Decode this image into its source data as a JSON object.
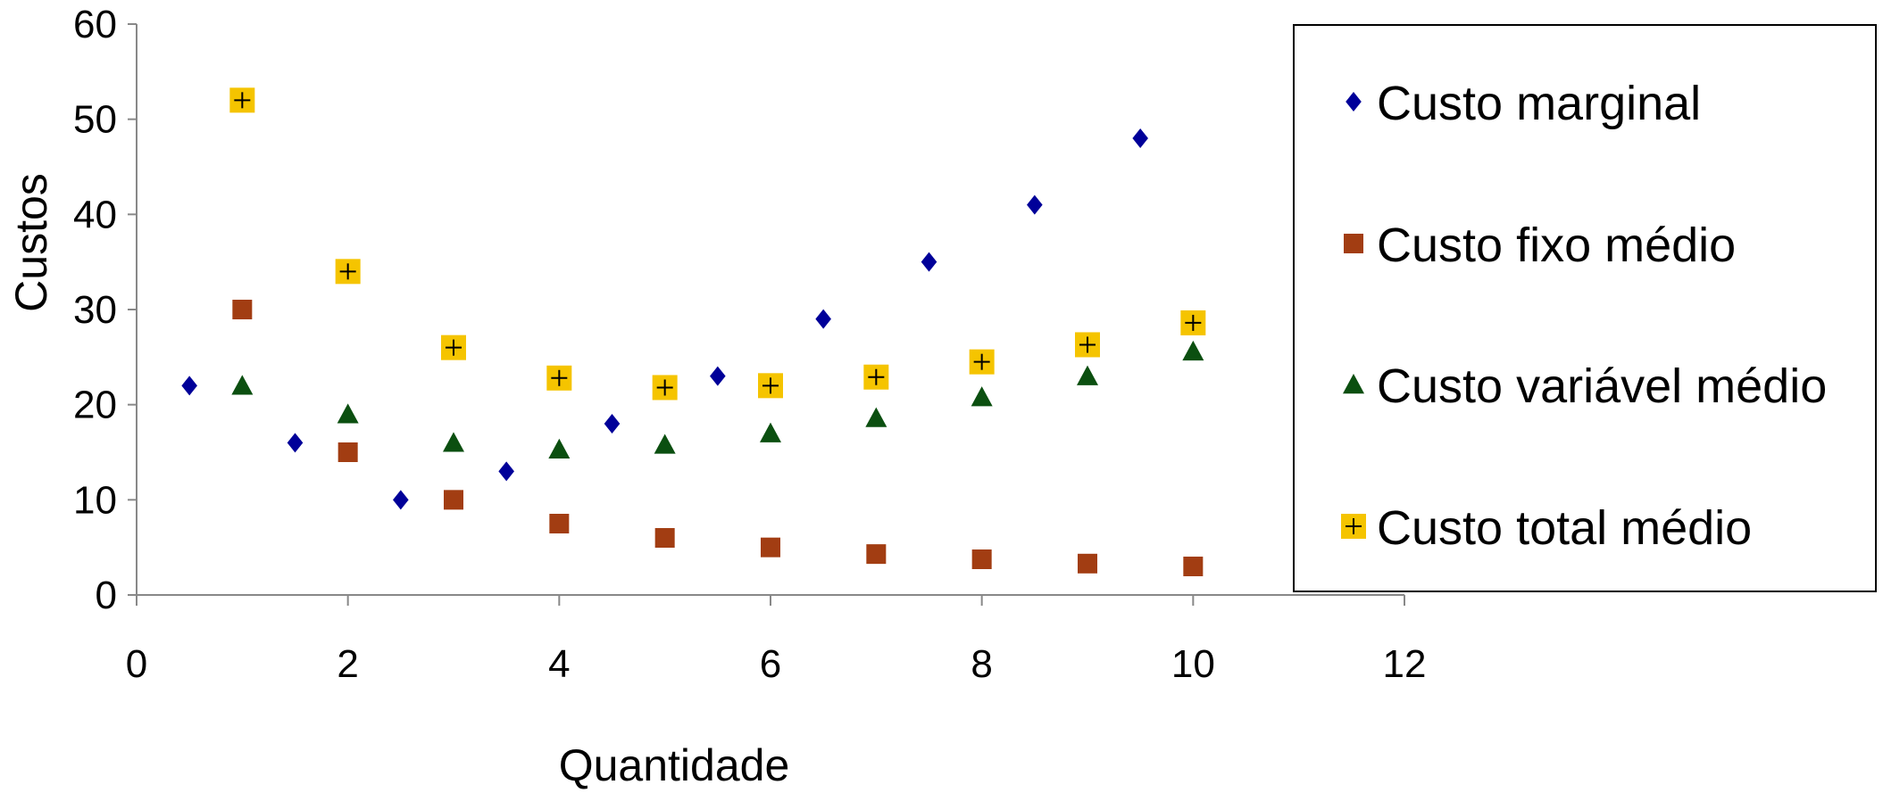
{
  "chart_data": {
    "type": "scatter",
    "xlabel": "Quantidade",
    "ylabel": "Custos",
    "xlim": [
      0,
      12
    ],
    "ylim": [
      0,
      60
    ],
    "x_ticks": [
      "0",
      "2",
      "4",
      "6",
      "8",
      "10",
      "12"
    ],
    "y_ticks": [
      "0",
      "10",
      "20",
      "30",
      "40",
      "50",
      "60"
    ],
    "grid": false,
    "legend_position": "right",
    "series": [
      {
        "name": "Custo marginal",
        "marker": "diamond",
        "color": "#000099",
        "points": [
          [
            0.5,
            22
          ],
          [
            1.5,
            16
          ],
          [
            2.5,
            10
          ],
          [
            3.5,
            13
          ],
          [
            4.5,
            18
          ],
          [
            5.5,
            23
          ],
          [
            6.5,
            29
          ],
          [
            7.5,
            35
          ],
          [
            8.5,
            41
          ],
          [
            9.5,
            48
          ]
        ]
      },
      {
        "name": "Custo fixo médio",
        "marker": "square",
        "color": "#A23D12",
        "points": [
          [
            1,
            30
          ],
          [
            2,
            15
          ],
          [
            3,
            10
          ],
          [
            4,
            7.5
          ],
          [
            5,
            6
          ],
          [
            6,
            5
          ],
          [
            7,
            4.3
          ],
          [
            8,
            3.75
          ],
          [
            9,
            3.3
          ],
          [
            10,
            3
          ]
        ]
      },
      {
        "name": "Custo variável médio",
        "marker": "triangle",
        "color": "#0B4F10",
        "points": [
          [
            1,
            22
          ],
          [
            2,
            19
          ],
          [
            3,
            16
          ],
          [
            4,
            15.3
          ],
          [
            5,
            15.8
          ],
          [
            6,
            17
          ],
          [
            7,
            18.6
          ],
          [
            8,
            20.8
          ],
          [
            9,
            23
          ],
          [
            10,
            25.6
          ]
        ]
      },
      {
        "name": "Custo total médio",
        "marker": "plus-square",
        "color": "#F5C400",
        "points": [
          [
            1,
            52
          ],
          [
            2,
            34
          ],
          [
            3,
            26
          ],
          [
            4,
            22.8
          ],
          [
            5,
            21.8
          ],
          [
            6,
            22
          ],
          [
            7,
            22.9
          ],
          [
            8,
            24.5
          ],
          [
            9,
            26.3
          ],
          [
            10,
            28.6
          ]
        ]
      }
    ]
  }
}
